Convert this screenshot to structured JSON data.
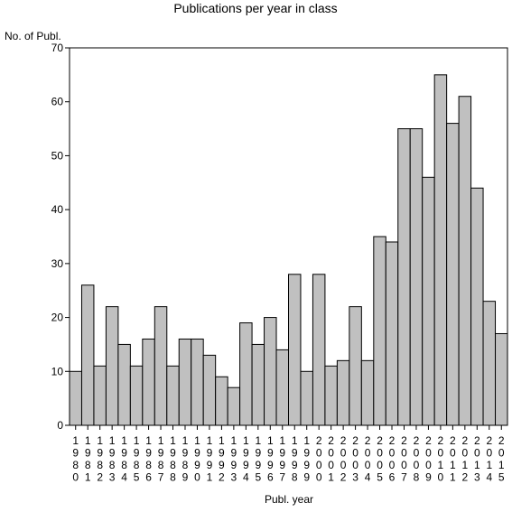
{
  "chart_data": {
    "type": "bar",
    "title": "Publications per year in class",
    "ylabel": "No. of Publ.",
    "xlabel": "Publ. year",
    "ylim": [
      0,
      70
    ],
    "yticks": [
      0,
      10,
      20,
      30,
      40,
      50,
      60,
      70
    ],
    "grid": false,
    "legend": "none",
    "bar_color": "#c0c0c0",
    "edge_color": "#000000",
    "categories": [
      "1980",
      "1981",
      "1982",
      "1983",
      "1984",
      "1985",
      "1986",
      "1987",
      "1988",
      "1989",
      "1990",
      "1991",
      "1992",
      "1993",
      "1994",
      "1995",
      "1996",
      "1997",
      "1998",
      "1999",
      "2000",
      "2001",
      "2002",
      "2003",
      "2004",
      "2005",
      "2006",
      "2007",
      "2008",
      "2009",
      "2010",
      "2011",
      "2012",
      "2013",
      "2014",
      "2015"
    ],
    "values": [
      10,
      26,
      11,
      22,
      15,
      11,
      16,
      22,
      11,
      16,
      16,
      13,
      9,
      7,
      19,
      15,
      20,
      14,
      28,
      10,
      28,
      11,
      12,
      22,
      12,
      35,
      34,
      55,
      55,
      46,
      65,
      56,
      61,
      44,
      23,
      17
    ]
  }
}
